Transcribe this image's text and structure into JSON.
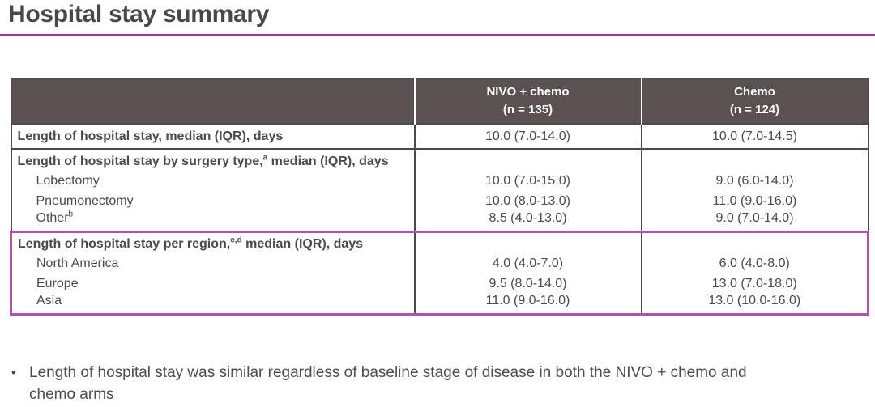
{
  "title": "Hospital stay summary",
  "colors": {
    "accent_underline": "#a232a2",
    "region_section_border": "#b152b1",
    "table_header_bg": "#595250",
    "table_border": "#4d4a48",
    "text": "#4d4a48"
  },
  "table": {
    "header": {
      "arm1_name": "NIVO + chemo",
      "arm1_n": "(n = 135)",
      "arm2_name": "Chemo",
      "arm2_n": "(n = 124)"
    },
    "overall_row": {
      "label": "Length of hospital stay, median (IQR), days",
      "nivo": "10.0 (7.0-14.0)",
      "chemo": "10.0 (7.0-14.5)"
    },
    "surgery_section": {
      "header": {
        "pre": "Length of hospital stay by surgery type,",
        "sup": "a",
        "post": " median (IQR), days"
      },
      "rows": [
        {
          "pre": "Lobectomy",
          "sup": "",
          "nivo": "10.0 (7.0-15.0)",
          "chemo": "9.0 (6.0-14.0)"
        },
        {
          "pre": "Pneumonectomy",
          "sup": "",
          "nivo": "10.0 (8.0-13.0)",
          "chemo": "11.0 (9.0-16.0)"
        },
        {
          "pre": "Other",
          "sup": "b",
          "nivo": "8.5 (4.0-13.0)",
          "chemo": "9.0 (7.0-14.0)"
        }
      ]
    },
    "region_section": {
      "header": {
        "pre": "Length of hospital stay per region,",
        "sup": "c,d",
        "post": " median (IQR), days"
      },
      "rows": [
        {
          "pre": "North America",
          "sup": "",
          "nivo": "4.0 (4.0-7.0)",
          "chemo": "6.0 (4.0-8.0)"
        },
        {
          "pre": "Europe",
          "sup": "",
          "nivo": "9.5 (8.0-14.0)",
          "chemo": "13.0 (7.0-18.0)"
        },
        {
          "pre": "Asia",
          "sup": "",
          "nivo": "11.0 (9.0-16.0)",
          "chemo": "13.0 (10.0-16.0)"
        }
      ]
    }
  },
  "bullet": {
    "marker": "•",
    "text": "Length of hospital stay was similar regardless of baseline stage of disease in both the NIVO + chemo and\nchemo arms"
  }
}
